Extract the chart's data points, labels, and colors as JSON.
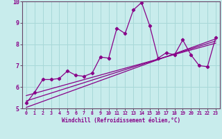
{
  "xlabel": "Windchill (Refroidissement éolien,°C)",
  "bg_color": "#c8ecec",
  "grid_color": "#a8d8d8",
  "line_color": "#880088",
  "spine_color": "#664466",
  "xlim": [
    -0.5,
    23.5
  ],
  "ylim": [
    5,
    10
  ],
  "xticks": [
    0,
    1,
    2,
    3,
    4,
    5,
    6,
    7,
    8,
    9,
    10,
    11,
    12,
    13,
    14,
    15,
    16,
    17,
    18,
    19,
    20,
    21,
    22,
    23
  ],
  "yticks": [
    5,
    6,
    7,
    8,
    9,
    10
  ],
  "data_x": [
    0,
    1,
    2,
    3,
    4,
    5,
    6,
    7,
    8,
    9,
    10,
    11,
    12,
    13,
    14,
    15,
    16,
    17,
    18,
    19,
    20,
    21,
    22,
    23
  ],
  "data_y": [
    5.25,
    5.75,
    6.35,
    6.35,
    6.4,
    6.75,
    6.55,
    6.5,
    6.65,
    7.4,
    7.35,
    8.75,
    8.5,
    9.6,
    9.95,
    8.85,
    7.35,
    7.6,
    7.5,
    8.2,
    7.5,
    7.0,
    6.95,
    8.3
  ],
  "trend1_x": [
    0,
    23
  ],
  "trend1_y": [
    5.05,
    8.25
  ],
  "trend2_x": [
    0,
    23
  ],
  "trend2_y": [
    5.35,
    8.15
  ],
  "trend3_x": [
    0,
    23
  ],
  "trend3_y": [
    5.6,
    8.05
  ]
}
